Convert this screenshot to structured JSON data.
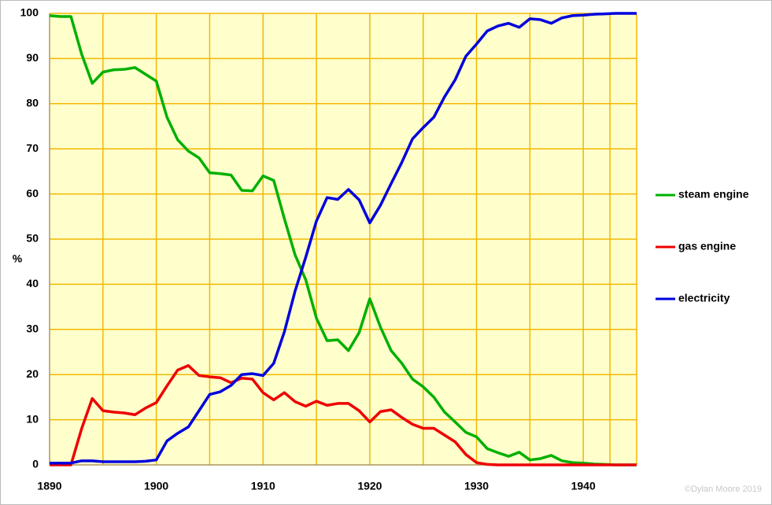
{
  "chart_data": {
    "type": "line",
    "y_label": "%",
    "credit": "©Dylan Moore 2019",
    "x": [
      1890,
      1891,
      1892,
      1893,
      1894,
      1895,
      1896,
      1897,
      1898,
      1899,
      1900,
      1901,
      1902,
      1903,
      1904,
      1905,
      1906,
      1907,
      1908,
      1909,
      1910,
      1911,
      1912,
      1913,
      1914,
      1915,
      1916,
      1917,
      1918,
      1919,
      1920,
      1921,
      1922,
      1923,
      1924,
      1925,
      1926,
      1927,
      1928,
      1929,
      1930,
      1931,
      1932,
      1933,
      1934,
      1935,
      1936,
      1937,
      1938,
      1939,
      1940,
      1941,
      1942,
      1943,
      1944,
      1945
    ],
    "series": [
      {
        "name": "steam engine",
        "color": "#00b000",
        "values": [
          99.5,
          99.3,
          99.3,
          91,
          84.5,
          87,
          87.5,
          87.6,
          88,
          86.5,
          85,
          77,
          72,
          69.5,
          68,
          64.7,
          64.5,
          64.2,
          60.8,
          60.7,
          64,
          63,
          54.5,
          46.5,
          41,
          32.5,
          27.5,
          27.7,
          25.3,
          29.3,
          36.8,
          30.5,
          25.3,
          22.5,
          19,
          17.3,
          15,
          11.7,
          9.5,
          7.2,
          6.2,
          3.6,
          2.7,
          1.9,
          2.8,
          1.1,
          1.4,
          2.1,
          0.9,
          0.5,
          0.4,
          0.2,
          0.1,
          0,
          0,
          0
        ]
      },
      {
        "name": "gas engine",
        "color": "#ee0000",
        "values": [
          0,
          0,
          0,
          8,
          14.7,
          12,
          11.7,
          11.5,
          11.1,
          12.6,
          13.8,
          17.5,
          21,
          22,
          19.8,
          19.5,
          19.3,
          18.2,
          19.2,
          19,
          16,
          14.4,
          16,
          14,
          13,
          14.1,
          13.2,
          13.6,
          13.6,
          12,
          9.5,
          11.8,
          12.2,
          10.5,
          9,
          8.1,
          8.1,
          6.6,
          5.1,
          2.3,
          0.5,
          0.1,
          0,
          0,
          0,
          0,
          0,
          0,
          0,
          0,
          0,
          0,
          0,
          0,
          0,
          0
        ]
      },
      {
        "name": "electricity",
        "color": "#0000dd",
        "values": [
          0.4,
          0.4,
          0.4,
          0.9,
          0.9,
          0.7,
          0.7,
          0.7,
          0.7,
          0.8,
          1.1,
          5.3,
          7,
          8.4,
          12,
          15.6,
          16.2,
          17.6,
          20,
          20.2,
          19.8,
          22.5,
          29.5,
          38.5,
          46,
          54,
          59.2,
          58.8,
          61,
          58.7,
          53.6,
          57.5,
          62.3,
          67,
          72.2,
          74.7,
          77,
          81.5,
          85.3,
          90.5,
          93.2,
          96.1,
          97.2,
          97.8,
          96.9,
          98.8,
          98.6,
          97.8,
          99,
          99.5,
          99.6,
          99.8,
          99.9,
          100,
          100,
          100
        ]
      }
    ],
    "xlim": [
      1890,
      1945
    ],
    "xticks": [
      1890,
      1900,
      1910,
      1920,
      1930,
      1940
    ],
    "ylim": [
      0,
      100
    ],
    "yticks": [
      0,
      10,
      20,
      30,
      40,
      50,
      60,
      70,
      80,
      90,
      100
    ],
    "grid": true,
    "legend": "right",
    "background": "#ffffcc",
    "grid_color": "#f0b800"
  }
}
